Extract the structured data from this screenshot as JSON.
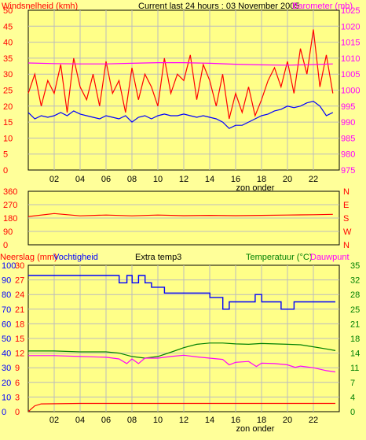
{
  "colors": {
    "background": "#ffff99",
    "plot_background": "#ffff88",
    "grid": "#bcbcbc",
    "wind": "#ff0000",
    "gust": "#0000ff",
    "barometer": "#ff00ff",
    "direction": "#ff0000",
    "rain": "#ff0000",
    "humidity": "#0000ff",
    "temperature": "#008000",
    "dewpoint": "#ff00ff"
  },
  "chart_data": [
    {
      "type": "line",
      "title": "Current last 24 hours : 03 November 2005",
      "ylabel": "Windsnelheid (kmh)",
      "y2label": "Barometer (mb)",
      "ylim": [
        0,
        50
      ],
      "y_ticks": [
        "0",
        "5",
        "10",
        "15",
        "20",
        "25",
        "30",
        "35",
        "40",
        "45",
        "50"
      ],
      "y2lim": [
        975,
        1025
      ],
      "y2_ticks": [
        "975",
        "980",
        "985",
        "990",
        "995",
        "1000",
        "1005",
        "1010",
        "1015",
        "1020",
        "1025"
      ],
      "x_ticks": [
        "02",
        "04",
        "06",
        "08",
        "10",
        "12",
        "14",
        "16",
        "18",
        "20",
        "22"
      ],
      "x_extra_label": "zon onder",
      "xlim": [
        0,
        24
      ],
      "grid": true,
      "series": [
        {
          "key": "wind",
          "axis": "left",
          "x": [
            0,
            0.5,
            1,
            1.5,
            2,
            2.5,
            3,
            3.5,
            4,
            4.5,
            5,
            5.5,
            6,
            6.5,
            7,
            7.5,
            8,
            8.5,
            9,
            9.5,
            10,
            10.5,
            11,
            11.5,
            12,
            12.5,
            13,
            13.5,
            14,
            14.5,
            15,
            15.5,
            16,
            16.5,
            17,
            17.5,
            18,
            18.5,
            19,
            19.5,
            20,
            20.5,
            21,
            21.5,
            22,
            22.5,
            23,
            23.5
          ],
          "values": [
            24,
            30,
            20,
            28,
            24,
            33,
            18,
            35,
            26,
            22,
            30,
            20,
            34,
            24,
            28,
            18,
            32,
            22,
            30,
            26,
            20,
            35,
            24,
            30,
            28,
            36,
            22,
            33,
            28,
            20,
            30,
            16,
            24,
            18,
            26,
            17,
            22,
            28,
            32,
            26,
            34,
            24,
            38,
            30,
            44,
            26,
            36,
            24
          ]
        },
        {
          "key": "gust",
          "axis": "left",
          "x": [
            0,
            0.5,
            1,
            1.5,
            2,
            2.5,
            3,
            3.5,
            4,
            4.5,
            5,
            5.5,
            6,
            6.5,
            7,
            7.5,
            8,
            8.5,
            9,
            9.5,
            10,
            10.5,
            11,
            11.5,
            12,
            12.5,
            13,
            13.5,
            14,
            14.5,
            15,
            15.5,
            16,
            16.5,
            17,
            17.5,
            18,
            18.5,
            19,
            19.5,
            20,
            20.5,
            21,
            21.5,
            22,
            22.5,
            23,
            23.5
          ],
          "values": [
            18,
            16,
            17,
            16.5,
            17,
            18,
            17,
            18.5,
            17.5,
            17,
            16.5,
            16,
            17,
            16.5,
            16,
            17,
            15,
            16.5,
            17,
            16,
            17,
            17.5,
            17,
            17,
            17.5,
            17,
            16.5,
            17,
            16.5,
            16,
            15,
            13,
            14,
            14,
            15,
            16,
            17,
            17.5,
            18.5,
            19,
            20,
            19.5,
            20,
            21,
            21.5,
            20,
            17,
            18
          ]
        },
        {
          "key": "barometer",
          "axis": "right",
          "x": [
            0,
            2,
            4,
            6,
            8,
            10,
            12,
            14,
            16,
            18,
            20,
            22,
            23.5
          ],
          "values": [
            1008.5,
            1008.3,
            1008.2,
            1008.2,
            1008.4,
            1008.6,
            1008.6,
            1008.4,
            1008.1,
            1007.9,
            1007.8,
            1008.0,
            1008.2
          ]
        }
      ]
    },
    {
      "type": "line",
      "ylabel": "",
      "y_ticks": [
        "0",
        "90",
        "180",
        "270",
        "360"
      ],
      "y2_ticks": [
        "N",
        "W",
        "S",
        "E",
        "N"
      ],
      "ylim": [
        0,
        360
      ],
      "xlim": [
        0,
        24
      ],
      "grid": true,
      "series": [
        {
          "key": "direction",
          "x": [
            0,
            2,
            4,
            6,
            8,
            10,
            12,
            14,
            16,
            18,
            20,
            22,
            23.5
          ],
          "values": [
            190,
            210,
            195,
            200,
            195,
            200,
            196,
            198,
            196,
            198,
            200,
            202,
            205
          ]
        }
      ]
    },
    {
      "type": "line",
      "labels": {
        "rain": "Neerslag (mm)",
        "humidity": "Vochtigheid",
        "extra": "Extra temp3",
        "temperature": "Temperatuur (°C)",
        "dewpoint": "Dauwpunt"
      },
      "rain_ticks": [
        "0",
        "3",
        "6",
        "9",
        "12",
        "15",
        "18",
        "21",
        "24",
        "27",
        "30"
      ],
      "rain_lim": [
        0,
        30
      ],
      "humidity_ticks": [
        "0",
        "10",
        "20",
        "30",
        "40",
        "50",
        "60",
        "70",
        "80",
        "90",
        "100"
      ],
      "humidity_lim": [
        0,
        100
      ],
      "temp_ticks": [
        "0",
        "4",
        "7",
        "11",
        "14",
        "18",
        "21",
        "25",
        "28",
        "32",
        "35"
      ],
      "temp_lim": [
        0,
        35
      ],
      "x_ticks": [
        "02",
        "04",
        "06",
        "08",
        "10",
        "12",
        "14",
        "16",
        "18",
        "20",
        "22"
      ],
      "x_extra_label": "zon onder",
      "xlim": [
        0,
        24
      ],
      "grid": true,
      "series": [
        {
          "key": "humidity",
          "axis": "humidity",
          "x": [
            0,
            7,
            7.01,
            7.6,
            7.61,
            8,
            8.01,
            8.5,
            8.51,
            9,
            9.01,
            9.5,
            9.51,
            10.5,
            10.51,
            14,
            14.01,
            15,
            15.01,
            15.5,
            15.51,
            17.5,
            17.51,
            18,
            18.01,
            19.5,
            19.51,
            20.5,
            20.51,
            21.3,
            21.31,
            23.7
          ],
          "values": [
            93,
            93,
            88,
            88,
            93,
            93,
            88,
            88,
            93,
            93,
            88,
            88,
            85,
            85,
            81,
            81,
            78,
            78,
            70,
            70,
            75,
            75,
            80,
            80,
            75,
            75,
            70,
            70,
            75,
            75,
            75,
            75
          ]
        },
        {
          "key": "temperature",
          "axis": "temp",
          "x": [
            0,
            2,
            4,
            6,
            7,
            8,
            9,
            10,
            11,
            12,
            13,
            14,
            15,
            16,
            17,
            18,
            19,
            20,
            21,
            22,
            23,
            23.7
          ],
          "values": [
            14.5,
            14.5,
            14.3,
            14.3,
            14.0,
            13.2,
            12.8,
            13.2,
            14.2,
            15.3,
            16.1,
            16.4,
            16.4,
            16.2,
            16.1,
            16.3,
            16.2,
            16.1,
            16.0,
            15.5,
            15.0,
            14.6
          ]
        },
        {
          "key": "dewpoint",
          "axis": "temp",
          "x": [
            0,
            2,
            4,
            6,
            7,
            7.6,
            8,
            8.5,
            9,
            10,
            11,
            12,
            13,
            14,
            15,
            15.5,
            16,
            17,
            17.6,
            18,
            19,
            20,
            20.6,
            21,
            22,
            23,
            23.7
          ],
          "values": [
            13.4,
            13.4,
            13.2,
            13.0,
            12.6,
            11.5,
            12.6,
            11.5,
            12.8,
            12.8,
            13.2,
            13.5,
            13.1,
            12.8,
            12.5,
            11.2,
            11.8,
            12.0,
            10.8,
            11.6,
            11.5,
            11.2,
            10.6,
            10.9,
            10.5,
            9.8,
            9.5
          ]
        },
        {
          "key": "rain",
          "axis": "rain",
          "x": [
            0,
            0.2,
            0.5,
            1,
            4,
            6,
            8,
            10,
            12,
            14,
            16,
            18,
            20,
            22,
            23.7
          ],
          "values": [
            0,
            0.5,
            1.2,
            1.6,
            1.7,
            1.7,
            1.7,
            1.7,
            1.7,
            1.7,
            1.7,
            1.7,
            1.7,
            1.7,
            1.7
          ]
        }
      ]
    }
  ]
}
